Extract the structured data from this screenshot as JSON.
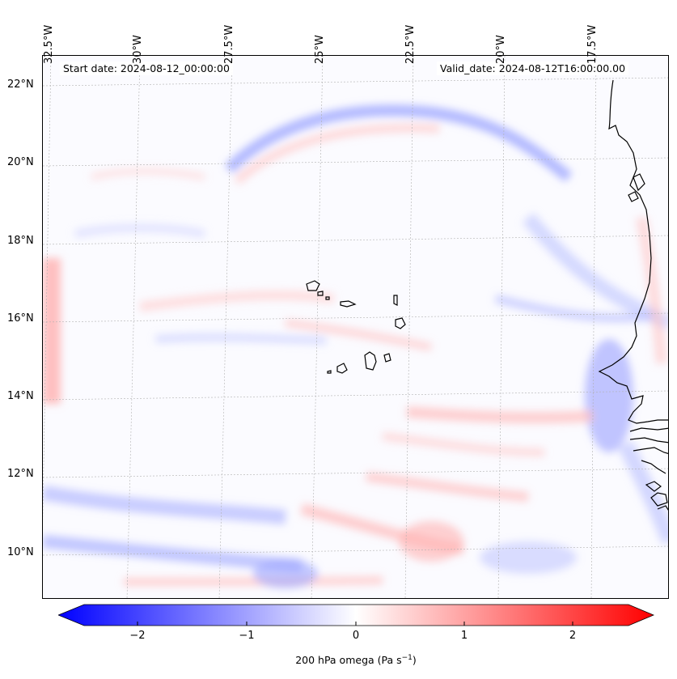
{
  "info": {
    "start_date": "Start date: 2024-08-12_00:00:00",
    "valid_date": "Valid_date: 2024-08-12T16:00:00.00"
  },
  "axes": {
    "lon_labels": [
      "32.5°W",
      "30°W",
      "27.5°W",
      "25°W",
      "22.5°W",
      "20°W",
      "17.5°W"
    ],
    "lat_labels": [
      "22°N",
      "20°N",
      "18°N",
      "16°N",
      "14°N",
      "12°N",
      "10°N"
    ]
  },
  "colorbar": {
    "ticks": [
      "−2",
      "−1",
      "0",
      "1",
      "2"
    ],
    "label_main": "200 hPa omega (Pa s",
    "label_sup": "−1",
    "label_end": ")",
    "min_color": "#0000ff",
    "mid_color": "#ffffff",
    "max_color": "#ff0000"
  }
}
